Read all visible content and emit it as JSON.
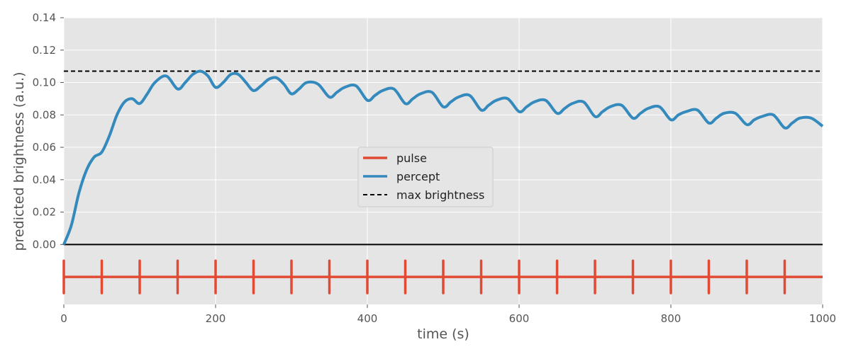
{
  "chart_data": {
    "type": "line",
    "xlabel": "time (s)",
    "ylabel": "predicted brightness (a.u.)",
    "xlim": [
      0,
      1000
    ],
    "ylim": [
      -0.037,
      0.14
    ],
    "x_ticks": [
      0,
      200,
      400,
      600,
      800,
      1000
    ],
    "x_tick_labels": [
      "0",
      "200",
      "400",
      "600",
      "800",
      "1000"
    ],
    "y_ticks": [
      0,
      0.02,
      0.04,
      0.06,
      0.08,
      0.1,
      0.12,
      0.14
    ],
    "y_tick_labels": [
      "0.00",
      "0.02",
      "0.04",
      "0.06",
      "0.08",
      "0.10",
      "0.12",
      "0.14"
    ],
    "grid": true,
    "legend_position": "center",
    "series": [
      {
        "name": "pulse",
        "color": "#E24A33",
        "style": "solid",
        "baseline": -0.02,
        "pulse_times": [
          0,
          50,
          100,
          150,
          200,
          250,
          300,
          350,
          400,
          450,
          500,
          550,
          600,
          650,
          700,
          750,
          800,
          850,
          900,
          950
        ],
        "pulse_range": [
          -0.03,
          -0.01
        ]
      },
      {
        "name": "percept",
        "color": "#348ABD",
        "style": "solid",
        "x": [
          0,
          10,
          20,
          30,
          40,
          50,
          60,
          70,
          80,
          90,
          100,
          110,
          120,
          135,
          150,
          160,
          170,
          180,
          190,
          200,
          210,
          220,
          230,
          240,
          250,
          260,
          270,
          280,
          290,
          300,
          310,
          320,
          335,
          350,
          360,
          370,
          385,
          400,
          410,
          420,
          435,
          450,
          460,
          470,
          485,
          500,
          510,
          520,
          535,
          550,
          560,
          570,
          585,
          600,
          610,
          620,
          635,
          650,
          660,
          670,
          685,
          700,
          710,
          720,
          735,
          750,
          760,
          770,
          785,
          800,
          810,
          820,
          835,
          850,
          860,
          870,
          885,
          900,
          910,
          920,
          935,
          950,
          960,
          970,
          985,
          1000
        ],
        "values": [
          0,
          0.012,
          0.032,
          0.046,
          0.054,
          0.057,
          0.067,
          0.08,
          0.088,
          0.09,
          0.087,
          0.093,
          0.1,
          0.104,
          0.096,
          0.1,
          0.105,
          0.107,
          0.104,
          0.097,
          0.1,
          0.105,
          0.105,
          0.1,
          0.095,
          0.098,
          0.102,
          0.103,
          0.099,
          0.093,
          0.096,
          0.1,
          0.099,
          0.091,
          0.094,
          0.097,
          0.098,
          0.089,
          0.092,
          0.095,
          0.096,
          0.087,
          0.09,
          0.093,
          0.094,
          0.085,
          0.088,
          0.091,
          0.092,
          0.083,
          0.086,
          0.089,
          0.09,
          0.082,
          0.085,
          0.088,
          0.089,
          0.081,
          0.084,
          0.087,
          0.088,
          0.079,
          0.082,
          0.085,
          0.086,
          0.078,
          0.081,
          0.084,
          0.085,
          0.077,
          0.08,
          0.082,
          0.083,
          0.075,
          0.078,
          0.081,
          0.081,
          0.074,
          0.077,
          0.079,
          0.08,
          0.072,
          0.075,
          0.078,
          0.078,
          0.073
        ]
      },
      {
        "name": "max brightness",
        "color": "#000000",
        "style": "dashed",
        "constant": 0.107
      }
    ],
    "reference_line": {
      "y": 0,
      "color": "#000000"
    }
  }
}
